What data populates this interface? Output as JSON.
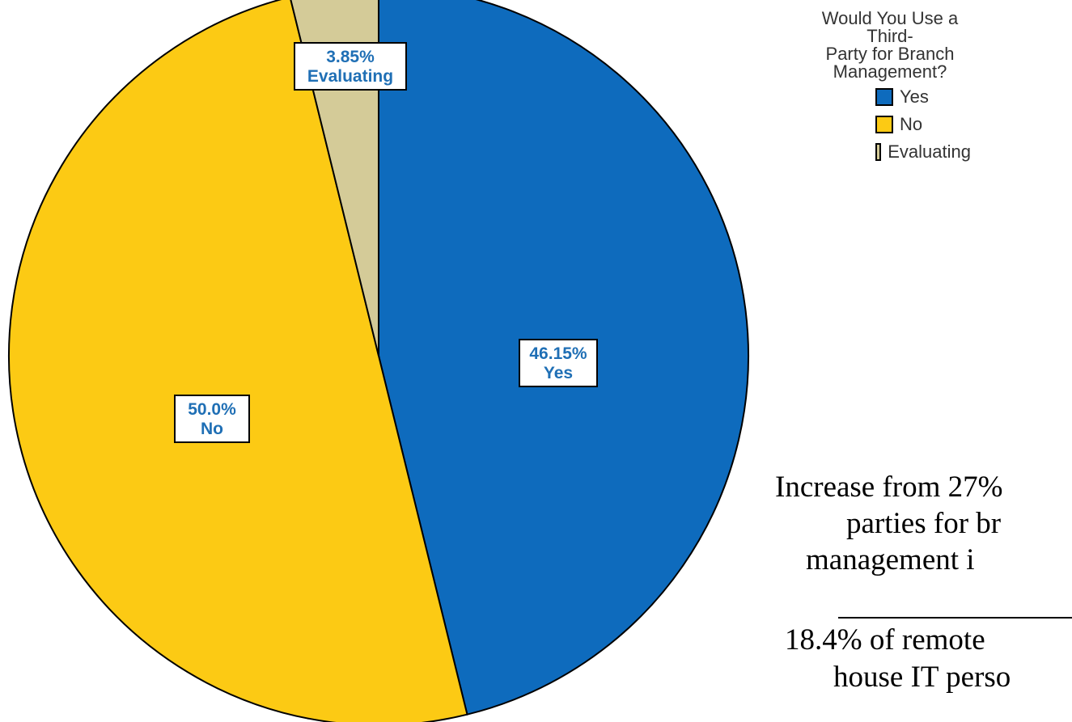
{
  "chart_data": {
    "type": "pie",
    "slices": [
      {
        "label": "Yes",
        "value": 46.15,
        "pct_label": "46.15%",
        "color": "#0e6bbd"
      },
      {
        "label": "No",
        "value": 50.0,
        "pct_label": "50.0%",
        "color": "#fcca14"
      },
      {
        "label": "Evaluating",
        "value": 3.85,
        "pct_label": "3.85%",
        "color": "#d4cb98"
      }
    ],
    "legend_title": "Would You Use a Third-Party for Branch Management?",
    "legend_title_lines": [
      "Would You Use a Third-",
      "Party for Branch",
      "Management?"
    ],
    "legend_position": "top-right",
    "label_text_color": "#1f6fb5",
    "outline_color": "#000000"
  },
  "side_text": {
    "line1": "Increase from 27%",
    "line2": "parties for br",
    "line3": "management i",
    "line4": "18.4% of remote",
    "line5": "house IT perso"
  }
}
